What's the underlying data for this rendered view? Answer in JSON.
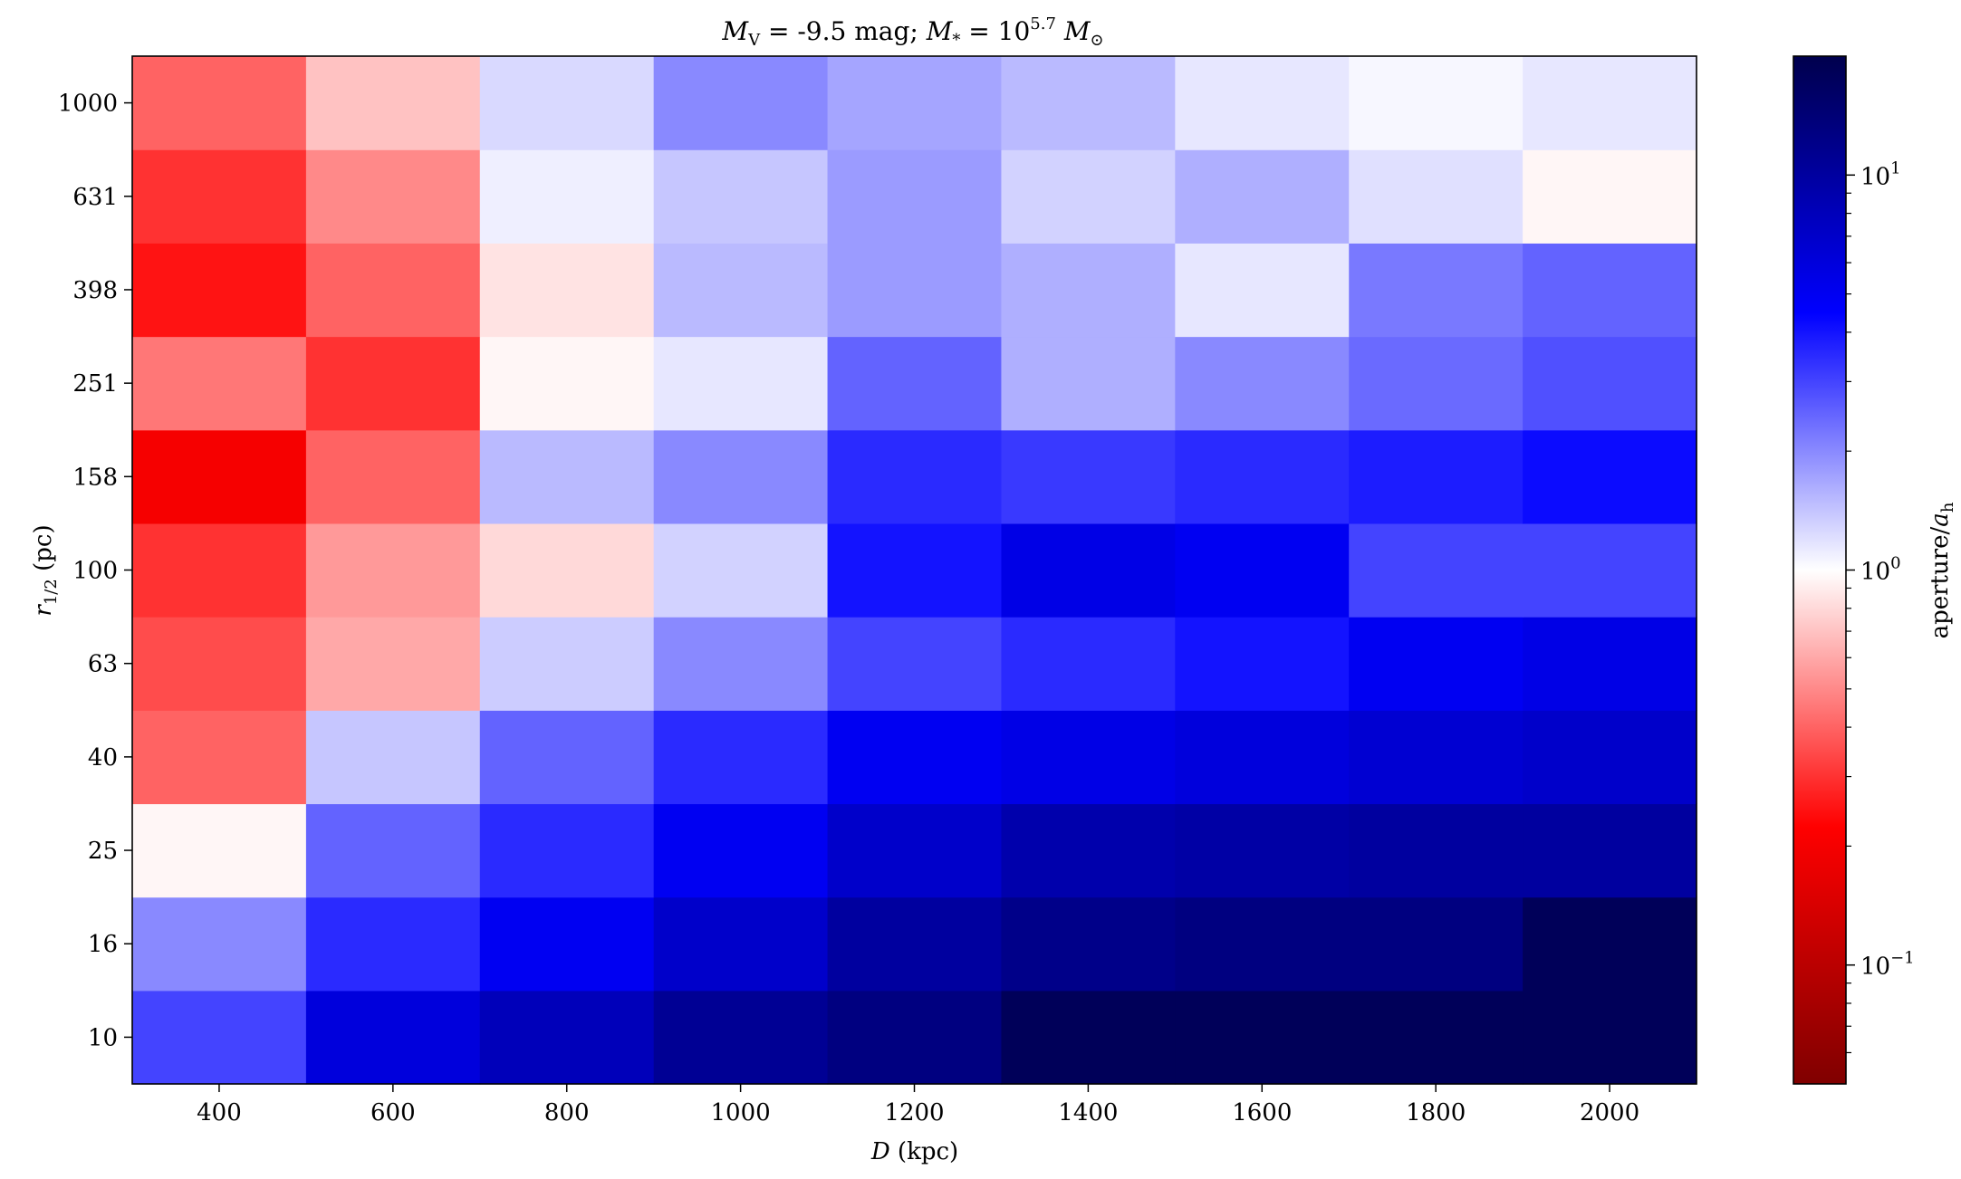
{
  "chart_data": {
    "type": "heatmap",
    "title": "M_V = -9.5 mag; M_* = 10^5.7 M_⊙",
    "title_parts": {
      "mv_sym": "M",
      "mv_sub": "V",
      "mv_text": " = -9.5 mag; ",
      "ms_sym": "M",
      "ms_sub": "*",
      "ms_eq": " = 10",
      "ms_exp": "5.7",
      "sun_sym": "M",
      "sun_sub": "⊙"
    },
    "xlabel": "D (kpc)",
    "xlabel_parts": {
      "sym": "D",
      "unit": " (kpc)"
    },
    "ylabel": "r_1/2 (pc)",
    "ylabel_parts": {
      "sym": "r",
      "sub": "1/2",
      "unit": " (pc)"
    },
    "x_ticks": [
      "400",
      "600",
      "800",
      "1000",
      "1200",
      "1400",
      "1600",
      "1800",
      "2000"
    ],
    "y_ticks": [
      "10",
      "16",
      "25",
      "40",
      "63",
      "100",
      "158",
      "251",
      "398",
      "631",
      "1000"
    ],
    "x": [
      400,
      600,
      800,
      1000,
      1200,
      1400,
      1600,
      1800,
      2000
    ],
    "y": [
      10,
      16,
      25,
      40,
      63,
      100,
      158,
      251,
      398,
      631,
      1000
    ],
    "xlim": [
      300,
      2100
    ],
    "values": [
      [
        3.0,
        6.0,
        8.0,
        11.0,
        13.0,
        18.0,
        18.0,
        18.0,
        18.0
      ],
      [
        2.0,
        3.5,
        5.0,
        7.0,
        10.0,
        12.0,
        13.0,
        13.0,
        18.0
      ],
      [
        0.95,
        2.5,
        3.5,
        5.0,
        7.0,
        9.0,
        9.5,
        10.0,
        10.0
      ],
      [
        0.4,
        1.4,
        2.5,
        3.5,
        5.0,
        5.5,
        6.0,
        6.5,
        7.0
      ],
      [
        0.35,
        0.6,
        1.35,
        2.0,
        3.0,
        3.5,
        4.0,
        5.0,
        5.5
      ],
      [
        0.3,
        0.55,
        0.8,
        1.3,
        4.0,
        5.5,
        5.0,
        3.0,
        3.0
      ],
      [
        0.2,
        0.4,
        1.5,
        2.0,
        3.5,
        3.2,
        3.5,
        3.8,
        4.2
      ],
      [
        0.45,
        0.3,
        0.95,
        1.15,
        2.5,
        1.6,
        2.0,
        2.4,
        2.8
      ],
      [
        0.25,
        0.4,
        0.85,
        1.5,
        1.8,
        1.6,
        1.15,
        2.2,
        2.5
      ],
      [
        0.3,
        0.5,
        1.1,
        1.4,
        1.8,
        1.3,
        1.6,
        1.2,
        0.95
      ],
      [
        0.4,
        0.7,
        1.25,
        2.0,
        1.7,
        1.5,
        1.15,
        1.05,
        1.15
      ]
    ],
    "colorbar": {
      "label": "aperture/a_h",
      "label_parts": {
        "text": "aperture/",
        "sym": "a",
        "sub": "h"
      },
      "scale": "log",
      "vmin": 0.05,
      "vmax": 20,
      "colormap": "seismic_r",
      "ticks": [
        {
          "value": 0.1,
          "base": "10",
          "exp": "−1"
        },
        {
          "value": 1,
          "base": "10",
          "exp": "0"
        },
        {
          "value": 10,
          "base": "10",
          "exp": "1"
        }
      ],
      "minor_ticks": [
        0.06,
        0.07,
        0.08,
        0.09,
        0.2,
        0.3,
        0.4,
        0.5,
        0.6,
        0.7,
        0.8,
        0.9,
        2,
        3,
        4,
        5,
        6,
        7,
        8,
        9
      ]
    },
    "grid": false,
    "legend": "none"
  }
}
